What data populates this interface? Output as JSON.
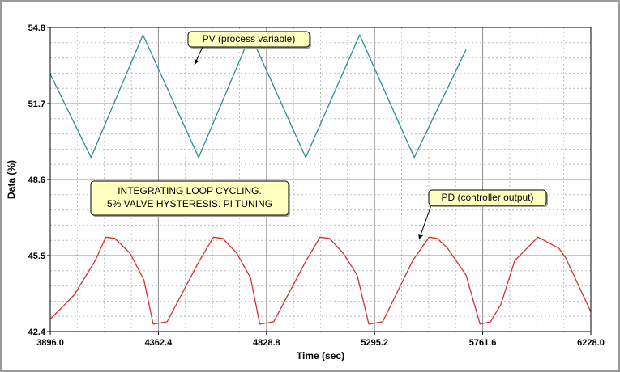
{
  "chart_data": {
    "type": "line",
    "xlabel": "Time (sec)",
    "ylabel": "Data (%)",
    "xlim": [
      3896.0,
      6228.0
    ],
    "ylim": [
      42.4,
      54.8
    ],
    "x_ticks": [
      "3896.0",
      "4362.4",
      "4828.8",
      "5295.2",
      "5761.6",
      "6228.0"
    ],
    "y_ticks": [
      "54.8",
      "51.7",
      "48.6",
      "45.5",
      "42.4"
    ],
    "grid": true,
    "annotations": [
      {
        "text": "PV (process variable)",
        "target": "PV"
      },
      {
        "text": "PD (controller output)",
        "target": "PD"
      },
      {
        "text": "INTEGRATING LOOP CYCLING.\n5% VALVE HYSTERESIS.   PI TUNING"
      }
    ],
    "series": [
      {
        "name": "PV",
        "color": "#2a8c9e",
        "x": [
          3896,
          4072,
          4296,
          4536,
          4760,
          4998,
          5231,
          5466,
          5690
        ],
        "y": [
          52.9,
          49.5,
          54.5,
          49.5,
          54.5,
          49.5,
          54.5,
          49.5,
          53.9
        ]
      },
      {
        "name": "PD",
        "color": "#d83030",
        "x": [
          3896,
          4000,
          4090,
          4136,
          4175,
          4240,
          4300,
          4340,
          4400,
          4540,
          4600,
          4640,
          4700,
          4760,
          4800,
          4860,
          5000,
          5060,
          5100,
          5160,
          5220,
          5270,
          5330,
          5460,
          5530,
          5565,
          5610,
          5690,
          5750,
          5795,
          5840,
          5900,
          6000,
          6090,
          6120,
          6228
        ],
        "y": [
          42.9,
          43.9,
          45.3,
          46.25,
          46.2,
          45.6,
          44.5,
          42.7,
          42.8,
          45.3,
          46.25,
          46.2,
          45.6,
          44.6,
          42.7,
          42.8,
          45.3,
          46.25,
          46.2,
          45.6,
          44.7,
          42.7,
          42.8,
          45.3,
          46.25,
          46.2,
          45.8,
          44.7,
          42.7,
          42.8,
          43.5,
          45.3,
          46.25,
          45.8,
          45.4,
          43.2
        ]
      }
    ]
  }
}
